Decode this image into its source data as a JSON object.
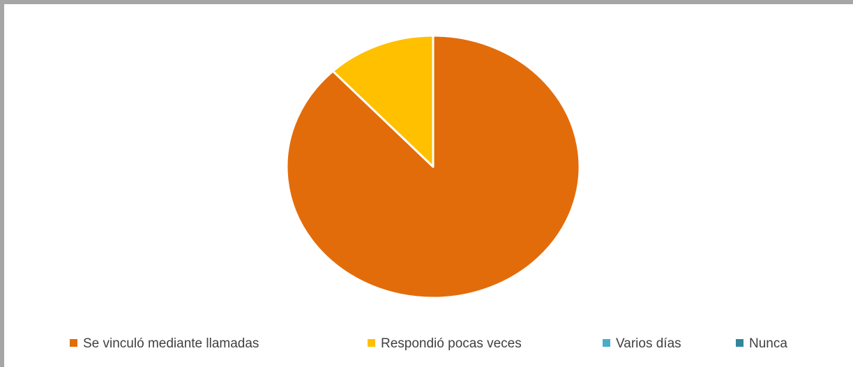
{
  "chart_data": {
    "type": "pie",
    "title": "",
    "categories": [
      "Se vinculó mediante llamadas",
      "Respondió pocas veces",
      "Varios días",
      "Nunca"
    ],
    "values": [
      88,
      12,
      0,
      0
    ],
    "colors": [
      "#e36c0a",
      "#ffc000",
      "#4bacc6",
      "#31859c"
    ],
    "legend_position": "bottom",
    "start_angle": "12 o'clock, clockwise"
  }
}
